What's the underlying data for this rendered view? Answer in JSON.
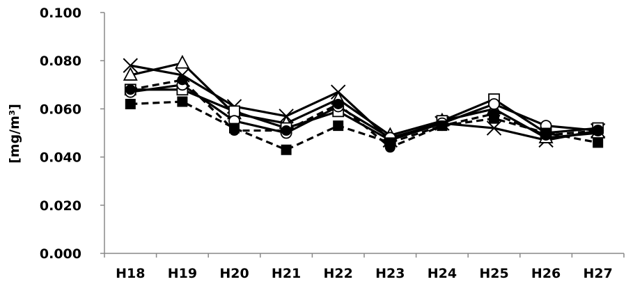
{
  "chart_data": {
    "type": "line",
    "title": "",
    "xlabel": "",
    "ylabel": "[mg/m³]",
    "ylim": [
      0,
      0.1
    ],
    "yticks": [
      "0.000",
      "0.020",
      "0.040",
      "0.060",
      "0.080",
      "0.100"
    ],
    "categories": [
      "H18",
      "H19",
      "H20",
      "H21",
      "H22",
      "H23",
      "H24",
      "H25",
      "H26",
      "H27"
    ],
    "grid": false,
    "legend": "none",
    "series": [
      {
        "marker": "cross",
        "line": "solid",
        "values": [
          0.078,
          0.074,
          0.061,
          0.057,
          0.067,
          0.047,
          0.054,
          0.052,
          0.047,
          0.051
        ]
      },
      {
        "marker": "triangle-open",
        "line": "solid",
        "values": [
          0.074,
          0.079,
          0.058,
          0.054,
          0.064,
          0.049,
          0.055,
          0.06,
          0.048,
          0.05
        ]
      },
      {
        "marker": "square-open",
        "line": "solid",
        "values": [
          0.068,
          0.068,
          0.059,
          0.052,
          0.059,
          0.047,
          0.055,
          0.064,
          0.05,
          0.052
        ]
      },
      {
        "marker": "circle-open",
        "line": "solid",
        "values": [
          0.067,
          0.07,
          0.055,
          0.05,
          0.061,
          0.048,
          0.054,
          0.062,
          0.053,
          0.051
        ]
      },
      {
        "marker": "circle-filled",
        "line": "dashed",
        "values": [
          0.068,
          0.072,
          0.051,
          0.051,
          0.062,
          0.044,
          0.053,
          0.058,
          0.049,
          0.051
        ]
      },
      {
        "marker": "square-filled",
        "line": "dashed",
        "values": [
          0.062,
          0.063,
          0.052,
          0.043,
          0.053,
          0.046,
          0.053,
          0.056,
          0.05,
          0.046
        ]
      }
    ],
    "colors": {
      "line": "#000000",
      "axis": "#888888",
      "background": "#ffffff"
    }
  }
}
